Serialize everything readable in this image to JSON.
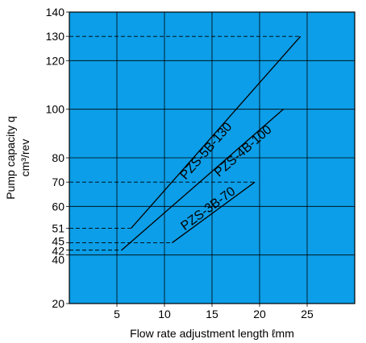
{
  "chart_data": {
    "type": "line",
    "background": "#0c9ee8",
    "grid": true,
    "xlabel": "Flow rate adjustment length ℓmm",
    "ylabel_line1": "Pump capacity q",
    "ylabel_line2": "cm³/rev",
    "xlim": [
      0,
      30
    ],
    "ylim": [
      20,
      140
    ],
    "x_ticks": [
      5,
      10,
      15,
      20,
      25
    ],
    "y_ticks": [
      20,
      40,
      60,
      80,
      100,
      120,
      140
    ],
    "y_grid": [
      20,
      40,
      42,
      45,
      51,
      60,
      70,
      80,
      100,
      120,
      130,
      140
    ],
    "y_tick_labels": [
      {
        "value": 20,
        "label": "20"
      },
      {
        "value": 40,
        "label": "40"
      },
      {
        "value": 42,
        "label": "42"
      },
      {
        "value": 45,
        "label": "45"
      },
      {
        "value": 51,
        "label": "51"
      },
      {
        "value": 60,
        "label": "60"
      },
      {
        "value": 70,
        "label": "70"
      },
      {
        "value": 80,
        "label": "80"
      },
      {
        "value": 100,
        "label": "100"
      },
      {
        "value": 120,
        "label": "120"
      },
      {
        "value": 130,
        "label": "130"
      },
      {
        "value": 140,
        "label": "140"
      }
    ],
    "reference_lines": [
      {
        "y": 130,
        "x_end": 24.3
      },
      {
        "y": 70,
        "x_end": 19.5
      },
      {
        "y": 51,
        "x_end": 6.5
      },
      {
        "y": 45,
        "x_end": 10.8
      },
      {
        "y": 42,
        "x_end": 5.5
      }
    ],
    "series": [
      {
        "name": "PZS-5B-130",
        "x": [
          6.5,
          24.3
        ],
        "y": [
          51,
          130
        ]
      },
      {
        "name": "PZS-4B-100",
        "x": [
          5.5,
          22.5
        ],
        "y": [
          42,
          100
        ]
      },
      {
        "name": "PZS-3B-70",
        "x": [
          10.8,
          19.5
        ],
        "y": [
          45,
          70
        ]
      }
    ]
  }
}
